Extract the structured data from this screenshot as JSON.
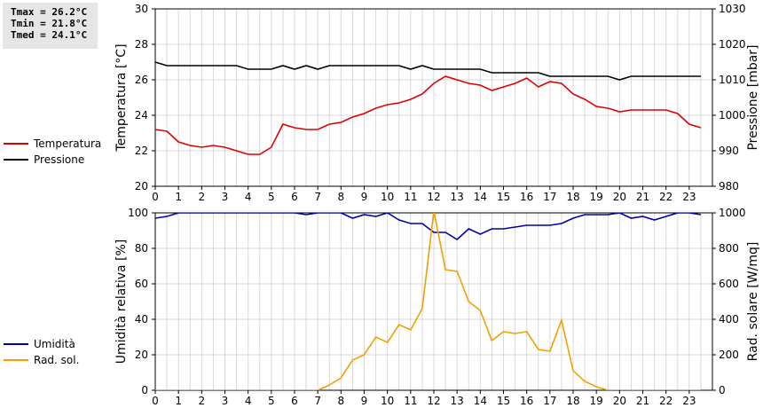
{
  "stats": {
    "tmax": "Tmax = 26.2°C",
    "tmin": "Tmin = 21.8°C",
    "tmed": "Tmed = 24.1°C"
  },
  "legend_top": [
    {
      "label": "Temperatura",
      "color": "#dd0000"
    },
    {
      "label": "Pressione",
      "color": "#000000"
    }
  ],
  "legend_bottom": [
    {
      "label": "Umidità",
      "color": "#0000aa"
    },
    {
      "label": "Rad. sol.",
      "color": "#f0a000"
    }
  ],
  "chart_data": [
    {
      "type": "line",
      "xlabel": "",
      "x_ticks": [
        "0",
        "1",
        "2",
        "3",
        "4",
        "5",
        "6",
        "7",
        "8",
        "9",
        "10",
        "11",
        "12",
        "13",
        "14",
        "15",
        "16",
        "17",
        "18",
        "19",
        "20",
        "21",
        "22",
        "23"
      ],
      "xlim": [
        0,
        24
      ],
      "grid": true,
      "left_axis": {
        "label": "Temperatura [°C]",
        "lim": [
          20,
          30
        ],
        "ticks": [
          "20",
          "22",
          "24",
          "26",
          "28",
          "30"
        ]
      },
      "right_axis": {
        "label": "Pressione [mbar]",
        "lim": [
          980,
          1030
        ],
        "ticks": [
          "980",
          "990",
          "1000",
          "1010",
          "1020",
          "1030"
        ]
      },
      "series": [
        {
          "name": "Temperatura",
          "axis": "left",
          "color": "#dd0000",
          "x": [
            0,
            0.5,
            1,
            1.5,
            2,
            2.5,
            3,
            3.5,
            4,
            4.5,
            5,
            5.5,
            6,
            6.5,
            7,
            7.5,
            8,
            8.5,
            9,
            9.5,
            10,
            10.5,
            11,
            11.5,
            12,
            12.5,
            13,
            13.5,
            14,
            14.5,
            15,
            15.5,
            16,
            16.5,
            17,
            17.5,
            18,
            18.5,
            19,
            19.5,
            20,
            20.5,
            21,
            21.5,
            22,
            22.5,
            23,
            23.5
          ],
          "y": [
            23.2,
            23.1,
            22.5,
            22.3,
            22.2,
            22.3,
            22.2,
            22.0,
            21.8,
            21.8,
            22.2,
            23.5,
            23.3,
            23.2,
            23.2,
            23.5,
            23.6,
            23.9,
            24.1,
            24.4,
            24.6,
            24.7,
            24.9,
            25.2,
            25.8,
            26.2,
            26.0,
            25.8,
            25.7,
            25.4,
            25.6,
            25.8,
            26.1,
            25.6,
            25.9,
            25.8,
            25.2,
            24.9,
            24.5,
            24.4,
            24.2,
            24.3,
            24.3,
            24.3,
            24.3,
            24.1,
            23.5,
            23.3
          ]
        },
        {
          "name": "Pressione",
          "axis": "right",
          "color": "#000000",
          "x": [
            0,
            0.5,
            1,
            1.5,
            2,
            2.5,
            3,
            3.5,
            4,
            4.5,
            5,
            5.5,
            6,
            6.5,
            7,
            7.5,
            8,
            8.5,
            9,
            9.5,
            10,
            10.5,
            11,
            11.5,
            12,
            12.5,
            13,
            13.5,
            14,
            14.5,
            15,
            15.5,
            16,
            16.5,
            17,
            17.5,
            18,
            18.5,
            19,
            19.5,
            20,
            20.5,
            21,
            21.5,
            22,
            22.5,
            23,
            23.5
          ],
          "y": [
            1015,
            1014,
            1014,
            1014,
            1014,
            1014,
            1014,
            1014,
            1013,
            1013,
            1013,
            1014,
            1013,
            1014,
            1013,
            1014,
            1014,
            1014,
            1014,
            1014,
            1014,
            1014,
            1013,
            1014,
            1013,
            1013,
            1013,
            1013,
            1013,
            1012,
            1012,
            1012,
            1012,
            1012,
            1011,
            1011,
            1011,
            1011,
            1011,
            1011,
            1010,
            1011,
            1011,
            1011,
            1011,
            1011,
            1011,
            1011
          ]
        }
      ]
    },
    {
      "type": "line",
      "xlabel": "",
      "x_ticks": [
        "0",
        "1",
        "2",
        "3",
        "4",
        "5",
        "6",
        "7",
        "8",
        "9",
        "10",
        "11",
        "12",
        "13",
        "14",
        "15",
        "16",
        "17",
        "18",
        "19",
        "20",
        "21",
        "22",
        "23"
      ],
      "xlim": [
        0,
        24
      ],
      "grid": true,
      "left_axis": {
        "label": "Umidità relativa [%]",
        "lim": [
          0,
          100
        ],
        "ticks": [
          "0",
          "20",
          "40",
          "60",
          "80",
          "100"
        ]
      },
      "right_axis": {
        "label": "Rad. solare [W/mq]",
        "lim": [
          0,
          1000
        ],
        "ticks": [
          "0",
          "200",
          "400",
          "600",
          "800",
          "1000"
        ]
      },
      "series": [
        {
          "name": "Umidità",
          "axis": "left",
          "color": "#0000aa",
          "x": [
            0,
            0.5,
            1,
            1.5,
            2,
            2.5,
            3,
            3.5,
            4,
            4.5,
            5,
            5.5,
            6,
            6.5,
            7,
            7.5,
            8,
            8.5,
            9,
            9.5,
            10,
            10.5,
            11,
            11.5,
            12,
            12.5,
            13,
            13.5,
            14,
            14.5,
            15,
            15.5,
            16,
            16.5,
            17,
            17.5,
            18,
            18.5,
            19,
            19.5,
            20,
            20.5,
            21,
            21.5,
            22,
            22.5,
            23,
            23.5
          ],
          "y": [
            97,
            98,
            100,
            100,
            100,
            100,
            100,
            100,
            100,
            100,
            100,
            100,
            100,
            99,
            100,
            100,
            100,
            97,
            99,
            98,
            100,
            96,
            94,
            94,
            89,
            89,
            85,
            91,
            88,
            91,
            91,
            92,
            93,
            93,
            93,
            94,
            97,
            99,
            99,
            99,
            100,
            97,
            98,
            96,
            98,
            100,
            100,
            99
          ]
        },
        {
          "name": "Rad. sol.",
          "axis": "right",
          "color": "#f0a000",
          "x": [
            0,
            0.5,
            1,
            1.5,
            2,
            2.5,
            3,
            3.5,
            4,
            4.5,
            5,
            5.5,
            6,
            6.5,
            7,
            7.5,
            8,
            8.5,
            9,
            9.5,
            10,
            10.5,
            11,
            11.5,
            12,
            12.5,
            13,
            13.5,
            14,
            14.5,
            15,
            15.5,
            16,
            16.5,
            17,
            17.5,
            18,
            18.5,
            19,
            19.5,
            20,
            20.5,
            21,
            21.5,
            22,
            22.5,
            23,
            23.5
          ],
          "y": [
            0,
            0,
            0,
            0,
            0,
            0,
            0,
            0,
            0,
            0,
            0,
            0,
            0,
            0,
            0,
            30,
            70,
            170,
            200,
            300,
            270,
            370,
            340,
            460,
            1010,
            680,
            670,
            500,
            450,
            280,
            330,
            320,
            330,
            230,
            220,
            395,
            110,
            50,
            20,
            0,
            0,
            0,
            0,
            0,
            0,
            0,
            0,
            0
          ]
        }
      ]
    }
  ]
}
